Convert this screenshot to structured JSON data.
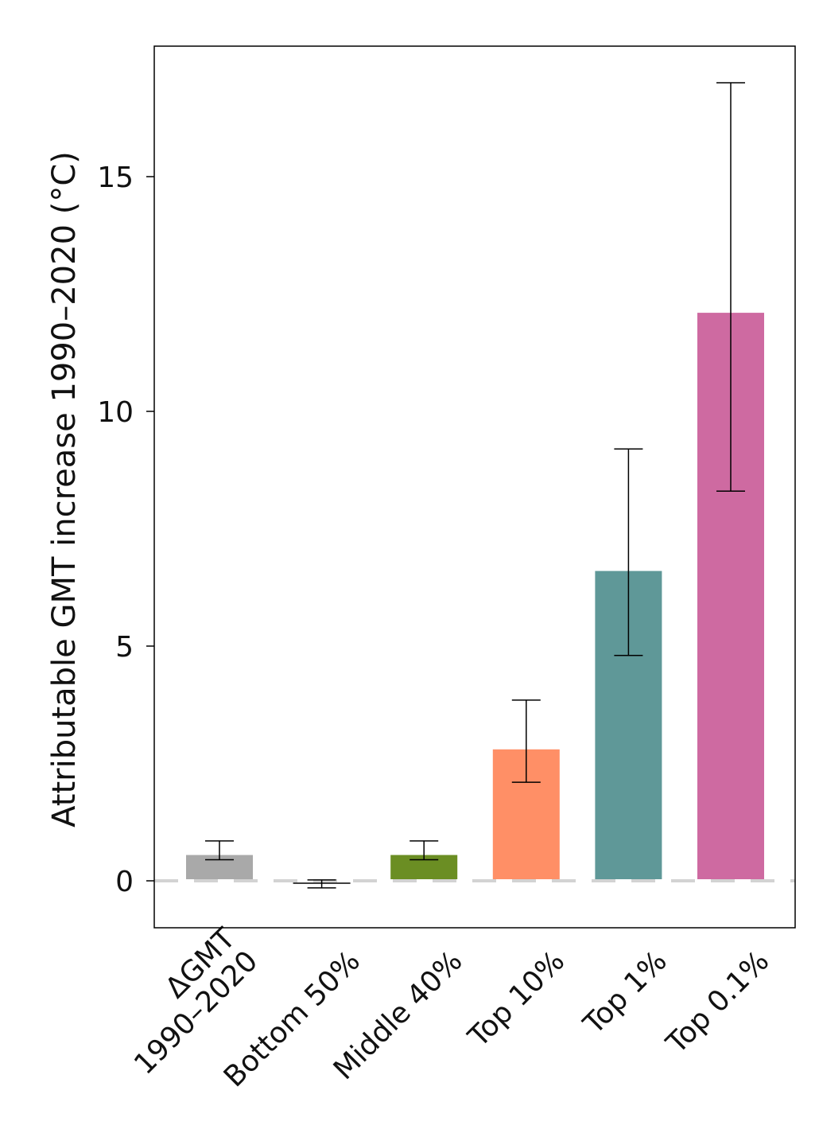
{
  "chart_data": {
    "type": "bar",
    "title": "",
    "xlabel": "",
    "ylabel": "Attributable GMT increase 1990–2020 (°C)",
    "ylim": [
      -1,
      17.8
    ],
    "yticks": [
      0,
      5,
      10,
      15
    ],
    "grid": false,
    "legend": "none",
    "reference_line": {
      "value": 0,
      "color": "#d3d3d3",
      "style": "dashed"
    },
    "categories": [
      {
        "label_lines": [
          "ΔGMT",
          "1990–2020"
        ],
        "value": 0.55,
        "err_low": 0.45,
        "err_high": 0.85,
        "color": "#a9a9a9"
      },
      {
        "label_lines": [
          "Bottom 50%"
        ],
        "value": -0.05,
        "err_low": -0.15,
        "err_high": 0.02,
        "color": "#a9a9a9"
      },
      {
        "label_lines": [
          "Middle 40%"
        ],
        "value": 0.55,
        "err_low": 0.45,
        "err_high": 0.85,
        "color": "#6b8e23"
      },
      {
        "label_lines": [
          "Top 10%"
        ],
        "value": 2.8,
        "err_low": 2.1,
        "err_high": 3.85,
        "color": "#ff8f66"
      },
      {
        "label_lines": [
          "Top 1%"
        ],
        "value": 6.6,
        "err_low": 4.8,
        "err_high": 9.2,
        "color": "#5f9898"
      },
      {
        "label_lines": [
          "Top 0.1%"
        ],
        "value": 12.1,
        "err_low": 8.3,
        "err_high": 17.0,
        "color": "#ce6aa1"
      }
    ]
  }
}
